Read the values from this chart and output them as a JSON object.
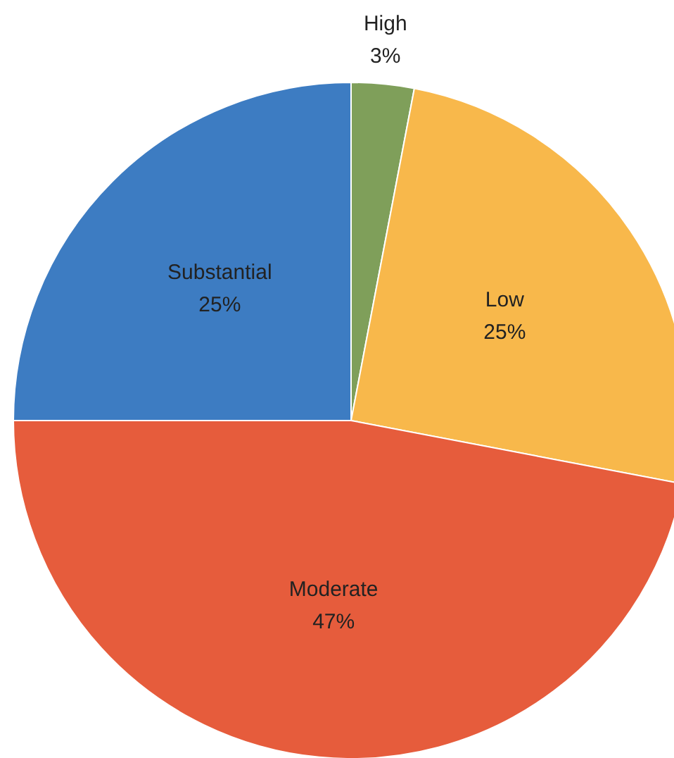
{
  "chart_data": {
    "type": "pie",
    "categories": [
      "High",
      "Low",
      "Moderate",
      "Substantial"
    ],
    "values": [
      3,
      25,
      47,
      25
    ],
    "value_labels": [
      "3%",
      "25%",
      "47%",
      "25%"
    ],
    "colors": [
      "#7f9f5a",
      "#f8b84b",
      "#e65c3c",
      "#3d7cc2"
    ]
  }
}
